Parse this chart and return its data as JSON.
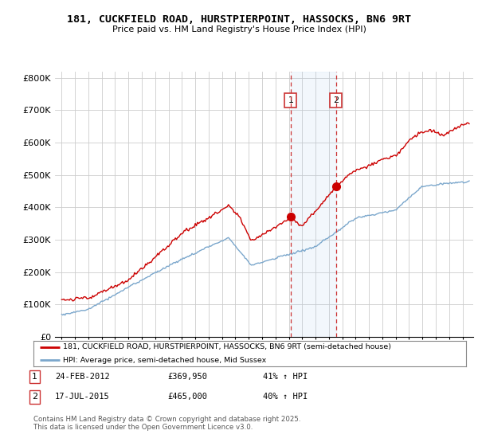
{
  "title": "181, CUCKFIELD ROAD, HURSTPIERPOINT, HASSOCKS, BN6 9RT",
  "subtitle": "Price paid vs. HM Land Registry's House Price Index (HPI)",
  "ylabel_ticks": [
    "£0",
    "£100K",
    "£200K",
    "£300K",
    "£400K",
    "£500K",
    "£600K",
    "£700K",
    "£800K"
  ],
  "ytick_values": [
    0,
    100000,
    200000,
    300000,
    400000,
    500000,
    600000,
    700000,
    800000
  ],
  "ylim": [
    0,
    820000
  ],
  "xlim_start": 1994.5,
  "xlim_end": 2025.8,
  "red_line_color": "#cc0000",
  "blue_line_color": "#7ba7cc",
  "event1_x": 2012.14,
  "event1_y": 369950,
  "event2_x": 2015.54,
  "event2_y": 465000,
  "event1_label": "1",
  "event2_label": "2",
  "event1_date": "24-FEB-2012",
  "event1_price": "£369,950",
  "event1_hpi": "41% ↑ HPI",
  "event2_date": "17-JUL-2015",
  "event2_price": "£465,000",
  "event2_hpi": "40% ↑ HPI",
  "legend_line1": "181, CUCKFIELD ROAD, HURSTPIERPOINT, HASSOCKS, BN6 9RT (semi-detached house)",
  "legend_line2": "HPI: Average price, semi-detached house, Mid Sussex",
  "footer": "Contains HM Land Registry data © Crown copyright and database right 2025.\nThis data is licensed under the Open Government Licence v3.0.",
  "background_color": "#ffffff",
  "plot_bg_color": "#ffffff",
  "grid_color": "#cccccc"
}
